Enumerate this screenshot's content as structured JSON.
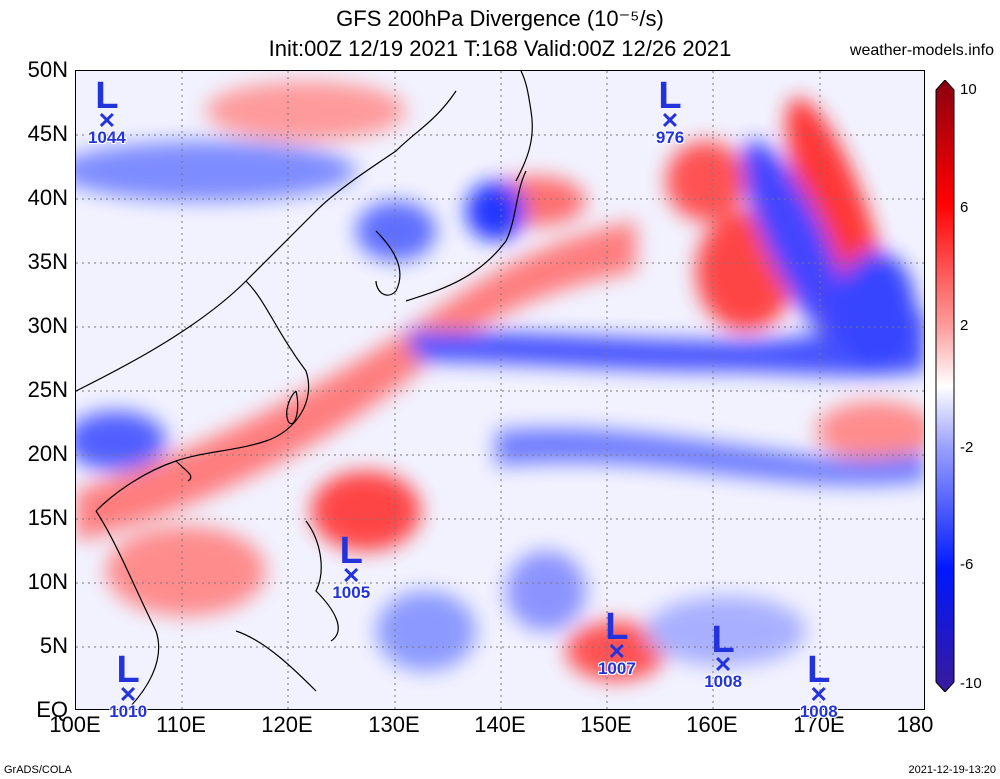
{
  "title": {
    "line1": "GFS 200hPa Divergence (10⁻⁵/s)",
    "line2": "Init:00Z 12/19 2021 T:168 Valid:00Z 12/26 2021"
  },
  "site": "weather-models.info",
  "lat_labels": [
    "50N",
    "45N",
    "40N",
    "35N",
    "30N",
    "25N",
    "20N",
    "15N",
    "10N",
    "5N",
    "EQ"
  ],
  "lon_labels": [
    "100E",
    "110E",
    "120E",
    "130E",
    "140E",
    "150E",
    "160E",
    "170E",
    "180"
  ],
  "colorbar": {
    "ticks": [
      "10",
      "6",
      "2",
      "-2",
      "-6",
      "-10"
    ],
    "colors": [
      "#ff0000",
      "#ff9a9a",
      "#ffffff",
      "#9aa0ff",
      "#0018ff",
      "#3a1a9a"
    ]
  },
  "lows": [
    {
      "label": "L",
      "pressure": "1044",
      "lon": 103,
      "lat": 46
    },
    {
      "label": "L",
      "pressure": "976",
      "lon": 156,
      "lat": 46
    },
    {
      "label": "L",
      "pressure": "1005",
      "lon": 126,
      "lat": 10.5
    },
    {
      "label": "L",
      "pressure": "1007",
      "lon": 151,
      "lat": 4.5
    },
    {
      "label": "L",
      "pressure": "1008",
      "lon": 161,
      "lat": 3.5
    },
    {
      "label": "L",
      "pressure": "1008",
      "lon": 170,
      "lat": 1.2
    },
    {
      "label": "L",
      "pressure": "1010",
      "lon": 105,
      "lat": 1.2
    }
  ],
  "footer": {
    "left": "GrADS/COLA",
    "right": "2021-12-19-13:20"
  },
  "map_extent": {
    "lon": [
      100,
      180
    ],
    "lat": [
      0,
      50
    ]
  }
}
